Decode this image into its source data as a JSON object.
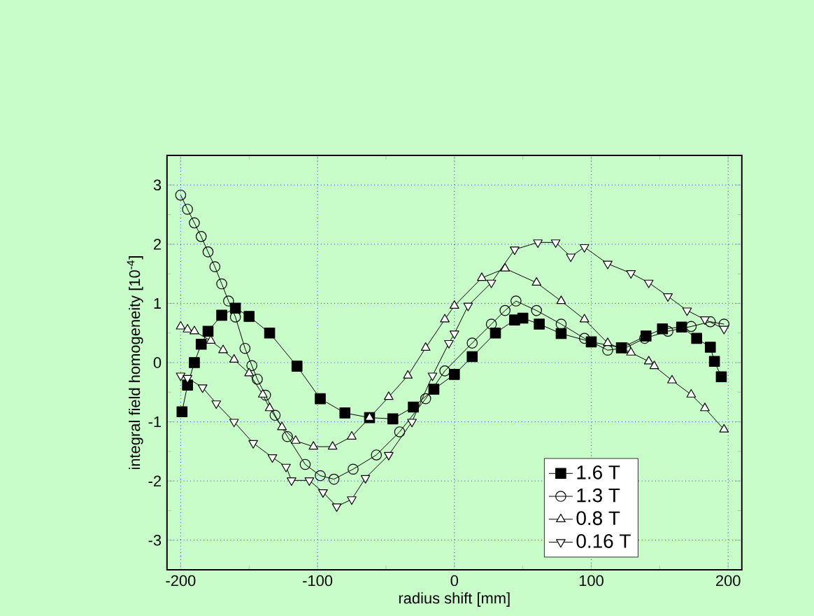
{
  "chart_data": {
    "type": "line",
    "xlabel": "radius shift [mm]",
    "ylabel": "integral field homogeneity [10$^{-4}$]",
    "xlim": [
      -210,
      210
    ],
    "ylim": [
      -3.5,
      3.5
    ],
    "xticks": [
      -200,
      -100,
      0,
      100,
      200
    ],
    "yticks": [
      -3,
      -2,
      -1,
      0,
      1,
      2,
      3
    ],
    "grid": true,
    "legend": "bottom right",
    "series": [
      {
        "name": "1.6 T",
        "color": "#000000",
        "marker": "square",
        "x": [
          -199,
          -195,
          -190,
          -185,
          -180,
          -170,
          -160,
          -150,
          -135,
          -115,
          -98,
          -80,
          -62,
          -45,
          -30,
          -15,
          0,
          13,
          30,
          44,
          50,
          62,
          78,
          100,
          122,
          140,
          152,
          166,
          177,
          187,
          190,
          195
        ],
        "values": [
          -0.83,
          -0.38,
          0.0,
          0.31,
          0.53,
          0.8,
          0.92,
          0.78,
          0.5,
          -0.06,
          -0.61,
          -0.85,
          -0.93,
          -0.95,
          -0.75,
          -0.45,
          -0.2,
          0.1,
          0.5,
          0.72,
          0.75,
          0.65,
          0.49,
          0.35,
          0.25,
          0.45,
          0.57,
          0.6,
          0.41,
          0.26,
          0.02,
          -0.24
        ]
      },
      {
        "name": "1.3 T",
        "color": "#000000",
        "marker": "circle",
        "x": [
          -200,
          -195,
          -190,
          -185,
          -180,
          -175,
          -170,
          -165,
          -160,
          -153,
          -148,
          -144,
          -138,
          -131,
          -122,
          -109,
          -98,
          -88,
          -74,
          -57,
          -40,
          -21,
          -7,
          13,
          27,
          37,
          45,
          60,
          78,
          95,
          112,
          125,
          139,
          156,
          173,
          187,
          197
        ],
        "values": [
          2.83,
          2.59,
          2.36,
          2.13,
          1.87,
          1.62,
          1.33,
          1.04,
          0.77,
          0.24,
          -0.05,
          -0.28,
          -0.55,
          -0.89,
          -1.25,
          -1.72,
          -1.91,
          -1.97,
          -1.8,
          -1.56,
          -1.17,
          -0.61,
          -0.14,
          0.33,
          0.65,
          0.88,
          1.04,
          0.88,
          0.65,
          0.41,
          0.21,
          0.25,
          0.41,
          0.53,
          0.61,
          0.69,
          0.65
        ]
      },
      {
        "name": "0.8 T",
        "color": "#000000",
        "marker": "triangle",
        "x": [
          -200,
          -195,
          -190,
          -178,
          -169,
          -161,
          -150,
          -140,
          -135,
          -126,
          -116,
          -103,
          -89,
          -75,
          -62,
          -48,
          -34,
          -21,
          -7,
          0,
          20,
          37,
          60,
          78,
          95,
          112,
          129,
          142,
          146,
          159,
          173,
          183,
          197
        ],
        "values": [
          0.61,
          0.56,
          0.53,
          0.37,
          0.21,
          0.05,
          -0.18,
          -0.54,
          -0.77,
          -1.09,
          -1.32,
          -1.42,
          -1.42,
          -1.25,
          -0.93,
          -0.58,
          -0.22,
          0.25,
          0.73,
          0.96,
          1.43,
          1.59,
          1.35,
          1.04,
          0.73,
          0.33,
          0.17,
          0.02,
          -0.06,
          -0.3,
          -0.54,
          -0.77,
          -1.13
        ]
      },
      {
        "name": "0.16 T",
        "color": "#000000",
        "marker": "triangle-down",
        "x": [
          -200,
          -195,
          -184,
          -174,
          -161,
          -147,
          -133,
          -123,
          -119,
          -106,
          -96,
          -86,
          -75,
          -65,
          -48,
          -31,
          -16,
          -4,
          0,
          10,
          27,
          44,
          61,
          74,
          85,
          95,
          112,
          129,
          142,
          156,
          170,
          183,
          197
        ],
        "values": [
          -0.22,
          -0.26,
          -0.42,
          -0.69,
          -1.0,
          -1.36,
          -1.6,
          -1.76,
          -1.99,
          -1.99,
          -2.19,
          -2.43,
          -2.31,
          -1.95,
          -1.56,
          -1.0,
          -0.22,
          0.33,
          0.49,
          0.96,
          1.35,
          1.91,
          2.03,
          2.03,
          1.79,
          1.95,
          1.67,
          1.51,
          1.35,
          1.12,
          0.88,
          0.73,
          0.57
        ]
      }
    ]
  }
}
